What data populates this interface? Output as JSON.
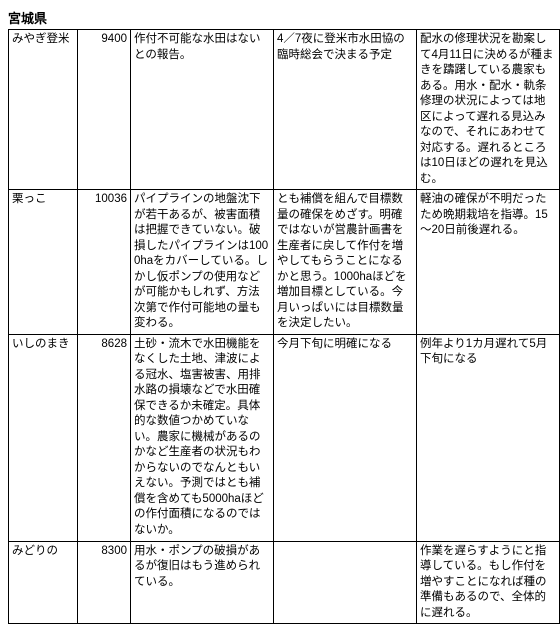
{
  "prefecture_header": "宮城県",
  "rows": [
    {
      "name": "みやぎ登米",
      "number": "9400",
      "col_a": "作付不可能な水田はないとの報告。",
      "col_b": "4／7夜に登米市水田協の臨時総会で決まる予定",
      "col_c": "配水の修理状況を勘案して4月11日に決めるが種まきを躊躇している農家もある。用水・配水・軌条修理の状況によっては地区によって遅れる見込みなので、それにあわせて対応する。遅れるところは10日ほどの遅れを見込む。"
    },
    {
      "name": "栗っこ",
      "number": "10036",
      "col_a": "パイプラインの地盤沈下が若干あるが、被害面積は把握できていない。破損したパイプラインは1000haをカバーしている。しかし仮ポンプの使用などが可能かもしれず、方法次第で作付可能地の量も変わる。",
      "col_b": "とも補償を組んで目標数量の確保をめざす。明確ではないが営農計画書を生産者に戻して作付を増やしてもらうことになるかと思う。1000haほどを増加目標としている。今月いっぱいには目標数量を決定したい。",
      "col_c": "軽油の確保が不明だったため晩期栽培を指導。15～20日前後遅れる。"
    },
    {
      "name": "いしのまき",
      "number": "8628",
      "col_a": "土砂・流木で水田機能をなくした土地、津波による冠水、塩害被害、用排水路の損壊などで水田確保できるか未確定。具体的な数値つかめていない。農家に機械があるのかなど生産者の状況もわからないのでなんともいえない。予測ではとも補償を含めても5000haほどの作付面積になるのではないか。",
      "col_b": "今月下旬に明確になる",
      "col_c": "例年より1カ月遅れて5月下旬になる"
    },
    {
      "name": "みどりの",
      "number": "8300",
      "col_a": "用水・ポンプの破損があるが復旧はもう進められている。",
      "col_b": "",
      "col_c": "作業を遅らすようにと指導している。もし作付を増やすことになれば種の準備もあるので、全体的に遅れる。"
    }
  ]
}
